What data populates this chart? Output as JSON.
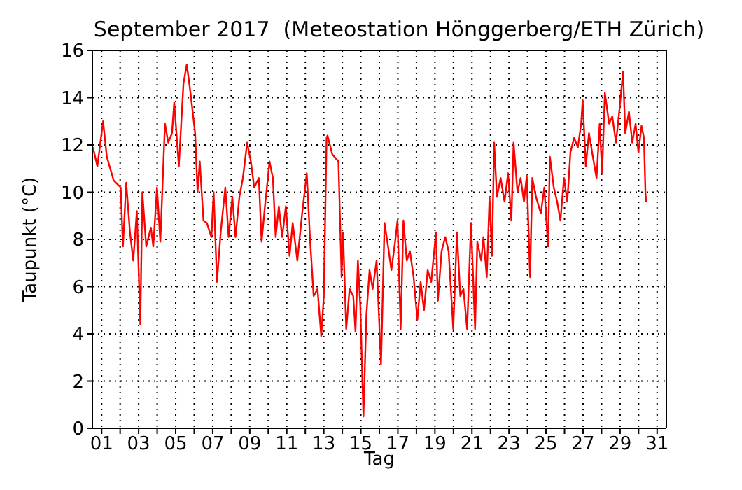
{
  "chart_data": {
    "type": "line",
    "title": "September 2017  (Meteostation Hönggerberg/ETH Zürich)",
    "xlabel": "Tag",
    "ylabel": "Taupunkt (°C)",
    "color": "#ff0000",
    "grid": true,
    "xlim": [
      0.5,
      31.5
    ],
    "ylim": [
      0,
      16
    ],
    "yticks": [
      0,
      2,
      4,
      6,
      8,
      10,
      12,
      14,
      16
    ],
    "xticks": [
      {
        "value": 1,
        "label": "01"
      },
      {
        "value": 2,
        "label": null
      },
      {
        "value": 3,
        "label": "03"
      },
      {
        "value": 4,
        "label": null
      },
      {
        "value": 5,
        "label": "05"
      },
      {
        "value": 6,
        "label": null
      },
      {
        "value": 7,
        "label": "07"
      },
      {
        "value": 8,
        "label": null
      },
      {
        "value": 9,
        "label": "09"
      },
      {
        "value": 10,
        "label": null
      },
      {
        "value": 11,
        "label": "11"
      },
      {
        "value": 12,
        "label": null
      },
      {
        "value": 13,
        "label": "13"
      },
      {
        "value": 14,
        "label": null
      },
      {
        "value": 15,
        "label": "15"
      },
      {
        "value": 16,
        "label": null
      },
      {
        "value": 17,
        "label": "17"
      },
      {
        "value": 18,
        "label": null
      },
      {
        "value": 19,
        "label": "19"
      },
      {
        "value": 20,
        "label": null
      },
      {
        "value": 21,
        "label": "21"
      },
      {
        "value": 22,
        "label": null
      },
      {
        "value": 23,
        "label": "23"
      },
      {
        "value": 24,
        "label": null
      },
      {
        "value": 25,
        "label": "25"
      },
      {
        "value": 26,
        "label": null
      },
      {
        "value": 27,
        "label": "27"
      },
      {
        "value": 28,
        "label": null
      },
      {
        "value": 29,
        "label": "29"
      },
      {
        "value": 30,
        "label": null
      },
      {
        "value": 31,
        "label": "31"
      }
    ],
    "x": [
      0.53,
      0.77,
      1.08,
      1.28,
      1.65,
      2.03,
      2.15,
      2.33,
      2.53,
      2.71,
      2.9,
      3.09,
      3.2,
      3.41,
      3.66,
      3.79,
      3.99,
      4.17,
      4.42,
      4.6,
      4.8,
      4.92,
      5.17,
      5.42,
      5.6,
      5.8,
      6.05,
      6.18,
      6.3,
      6.5,
      6.68,
      6.93,
      7.05,
      7.23,
      7.43,
      7.68,
      7.86,
      8.06,
      8.23,
      8.44,
      8.63,
      8.86,
      9.06,
      9.24,
      9.49,
      9.64,
      9.82,
      10.07,
      10.25,
      10.4,
      10.57,
      10.75,
      10.95,
      11.15,
      11.32,
      11.57,
      11.83,
      12.08,
      12.25,
      12.45,
      12.66,
      12.86,
      13.0,
      13.15,
      13.2,
      13.46,
      13.79,
      13.96,
      14.04,
      14.21,
      14.39,
      14.59,
      14.71,
      14.84,
      14.97,
      15.14,
      15.3,
      15.47,
      15.64,
      15.85,
      16.09,
      16.28,
      16.47,
      16.65,
      16.85,
      16.98,
      17.15,
      17.3,
      17.48,
      17.65,
      17.85,
      18.05,
      18.23,
      18.41,
      18.61,
      18.8,
      19.06,
      19.16,
      19.36,
      19.56,
      19.74,
      19.99,
      20.19,
      20.37,
      20.54,
      20.74,
      20.95,
      21.17,
      21.29,
      21.5,
      21.62,
      21.8,
      21.95,
      22.08,
      22.2,
      22.35,
      22.55,
      22.76,
      22.95,
      23.13,
      23.25,
      23.46,
      23.63,
      23.81,
      23.96,
      24.14,
      24.26,
      24.46,
      24.72,
      24.91,
      25.11,
      25.21,
      25.42,
      25.6,
      25.78,
      25.97,
      26.15,
      26.32,
      26.52,
      26.72,
      26.9,
      26.98,
      27.15,
      27.32,
      27.53,
      27.73,
      27.9,
      28.03,
      28.18,
      28.41,
      28.58,
      28.78,
      28.98,
      29.16,
      29.28,
      29.48,
      29.66,
      29.84,
      29.99,
      30.16,
      30.29,
      30.37,
      30.41
    ],
    "values": [
      11.9,
      11.1,
      13.0,
      11.5,
      10.5,
      10.2,
      7.7,
      10.4,
      8.3,
      7.1,
      9.2,
      4.4,
      10.0,
      7.7,
      8.5,
      7.7,
      10.2,
      7.9,
      12.9,
      12.1,
      12.5,
      13.8,
      11.1,
      14.6,
      15.4,
      14.2,
      12.5,
      10.0,
      11.3,
      8.8,
      8.7,
      8.1,
      10.0,
      6.2,
      8.3,
      10.2,
      8.1,
      9.8,
      8.1,
      9.8,
      10.6,
      12.1,
      11.3,
      10.2,
      10.6,
      7.9,
      9.4,
      11.3,
      10.6,
      8.1,
      9.4,
      8.1,
      9.4,
      7.3,
      8.7,
      7.1,
      9.1,
      10.8,
      8.1,
      5.6,
      5.9,
      3.9,
      5.6,
      12.3,
      12.4,
      11.6,
      11.3,
      6.4,
      8.3,
      4.2,
      5.9,
      5.6,
      4.1,
      7.1,
      5.2,
      0.5,
      4.8,
      6.7,
      5.9,
      7.1,
      2.7,
      8.7,
      7.7,
      6.7,
      7.9,
      8.8,
      4.2,
      8.8,
      7.1,
      7.5,
      6.4,
      4.6,
      6.2,
      5.0,
      6.7,
      6.2,
      8.3,
      5.4,
      7.5,
      8.1,
      7.5,
      4.2,
      8.3,
      5.6,
      5.9,
      4.2,
      8.7,
      4.2,
      7.9,
      7.1,
      8.1,
      6.4,
      9.8,
      7.3,
      12.1,
      9.8,
      10.6,
      9.6,
      10.8,
      8.8,
      12.1,
      10.0,
      10.6,
      9.6,
      10.7,
      6.4,
      10.6,
      9.8,
      9.1,
      10.2,
      7.7,
      11.5,
      10.2,
      9.6,
      8.8,
      10.6,
      9.6,
      11.7,
      12.3,
      11.9,
      12.9,
      13.9,
      11.1,
      12.5,
      11.5,
      10.6,
      12.9,
      10.8,
      14.2,
      12.9,
      13.2,
      12.1,
      13.6,
      15.1,
      12.5,
      13.4,
      12.1,
      12.9,
      11.7,
      12.8,
      12.3,
      10.0,
      9.6
    ]
  }
}
